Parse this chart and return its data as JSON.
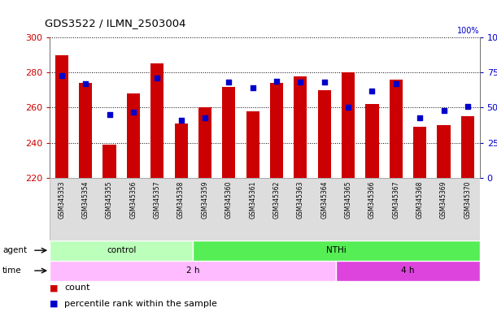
{
  "title": "GDS3522 / ILMN_2503004",
  "samples": [
    "GSM345353",
    "GSM345354",
    "GSM345355",
    "GSM345356",
    "GSM345357",
    "GSM345358",
    "GSM345359",
    "GSM345360",
    "GSM345361",
    "GSM345362",
    "GSM345363",
    "GSM345364",
    "GSM345365",
    "GSM345366",
    "GSM345367",
    "GSM345368",
    "GSM345369",
    "GSM345370"
  ],
  "bar_values": [
    290,
    274,
    239,
    268,
    285,
    251,
    260,
    272,
    258,
    274,
    278,
    270,
    280,
    262,
    276,
    249,
    250,
    255
  ],
  "blue_dot_values": [
    73,
    67,
    45,
    47,
    71,
    41,
    43,
    68,
    64,
    69,
    68,
    68,
    50,
    62,
    67,
    43,
    48,
    51
  ],
  "bar_color": "#cc0000",
  "dot_color": "#0000cc",
  "ymin": 220,
  "ymax": 300,
  "yticks_left": [
    220,
    240,
    260,
    280,
    300
  ],
  "yticks_right": [
    0,
    25,
    50,
    75,
    100
  ],
  "agent_control_count": 6,
  "agent_control_label": "control",
  "agent_nthi_label": "NTHi",
  "agent_control_color": "#bbffbb",
  "agent_nthi_color": "#55ee55",
  "time_2h_count": 12,
  "time_2h_label": "2 h",
  "time_2h_color": "#ffbbff",
  "time_4h_count": 6,
  "time_4h_label": "4 h",
  "time_4h_color": "#dd44dd",
  "legend_count_label": "count",
  "legend_pct_label": "percentile rank within the sample",
  "bar_width": 0.55,
  "tick_bg_color": "#dddddd"
}
